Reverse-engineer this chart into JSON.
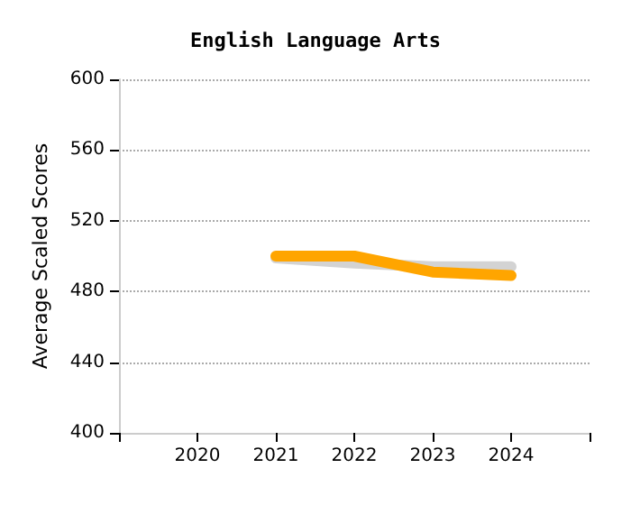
{
  "chart_data": {
    "type": "line",
    "title": "English Language Arts",
    "ylabel": "Average Scaled Scores",
    "series": [
      {
        "color": "#d3d3d3",
        "x": [
          2021,
          2022,
          2023,
          2024
        ],
        "values": [
          499,
          496,
          494,
          494
        ]
      },
      {
        "color": "#ffa500",
        "x": [
          2021,
          2022,
          2023,
          2024
        ],
        "values": [
          500,
          500,
          491,
          489
        ]
      }
    ],
    "xlim": [
      2019,
      2025
    ],
    "xticks": [
      {
        "value": 2019,
        "label": null
      },
      2020,
      2021,
      2022,
      2023,
      2024,
      {
        "value": 2025,
        "label": null
      }
    ],
    "ylim": [
      400,
      600
    ],
    "yticks": [
      400,
      440,
      480,
      520,
      560,
      600
    ],
    "grid": "y",
    "marker": "none",
    "line_style": "solid"
  }
}
